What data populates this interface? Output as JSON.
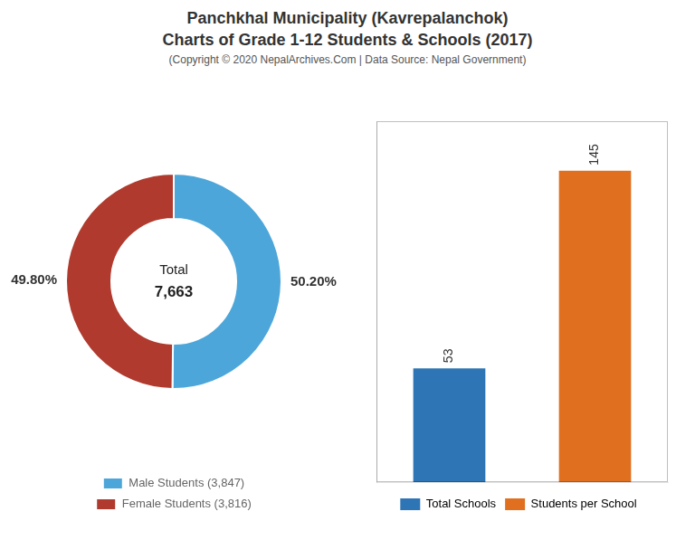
{
  "title": [
    "Panchkhal Municipality (Kavrepalanchok)",
    "Charts of Grade 1-12 Students & Schools (2017)"
  ],
  "subtitle": "(Copyright © 2020 NepalArchives.Com | Data Source: Nepal Government)",
  "chart_data": [
    {
      "type": "doughnut",
      "categories": [
        "Male Students (3,847)",
        "Female Students (3,816)"
      ],
      "values": [
        50.2,
        49.8
      ],
      "value_labels": [
        "50.20%",
        "49.80%"
      ],
      "colors": [
        "#4da6d9",
        "#b03a2e"
      ],
      "data_labels": true,
      "annotations": [
        "Total",
        "7,663"
      ],
      "legend": "bottom"
    },
    {
      "type": "bar",
      "categories": [
        "Total Schools",
        "Students per School"
      ],
      "values": [
        53,
        145
      ],
      "colors": [
        "#2e75b6",
        "#e07020"
      ],
      "ylim": [
        0,
        168
      ],
      "data_labels": true,
      "tick_labels": false,
      "grid": false,
      "legend": "bottom"
    }
  ]
}
